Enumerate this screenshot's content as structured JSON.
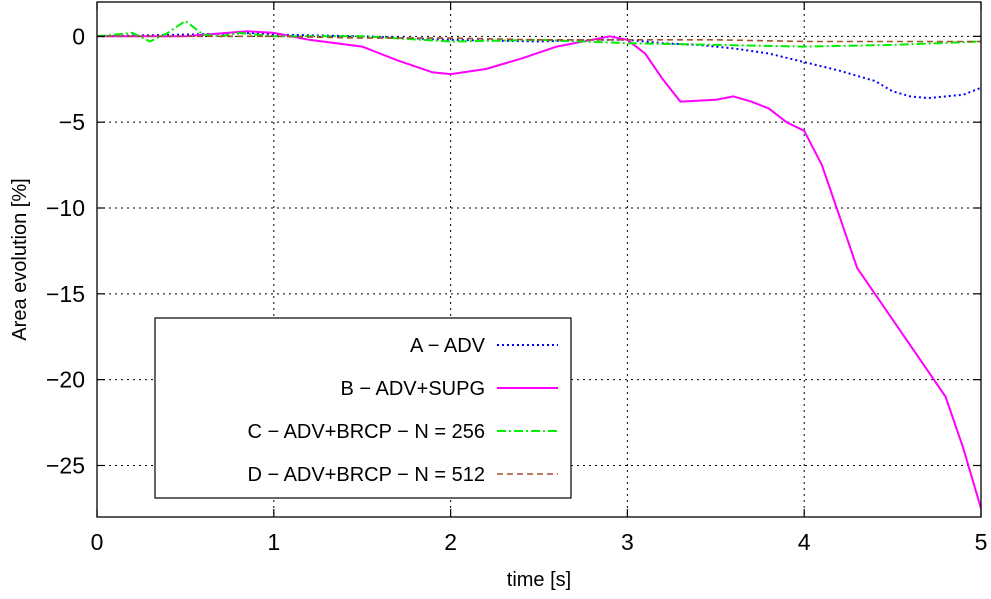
{
  "chart_data": {
    "type": "line",
    "title": "",
    "xlabel": "time [s]",
    "ylabel": "Area evolution [%]",
    "xlim": [
      0,
      5
    ],
    "ylim": [
      -28,
      2
    ],
    "xticks": [
      0,
      1,
      2,
      3,
      4,
      5
    ],
    "xtick_labels": [
      "0",
      "1",
      "2",
      "3",
      "4",
      "5"
    ],
    "yticks": [
      0,
      -5,
      -10,
      -15,
      -20,
      -25
    ],
    "ytick_labels": [
      "0",
      "−5",
      "−10",
      "−15",
      "−20",
      "−25"
    ],
    "grid": true,
    "legend_position": "bottom-left",
    "series": [
      {
        "name": "A − ADV",
        "color": "#0000ff",
        "style": "dotted",
        "x": [
          0,
          0.5,
          0.9,
          1.0,
          1.5,
          2.0,
          2.5,
          2.8,
          3.0,
          3.2,
          3.4,
          3.6,
          3.8,
          4.0,
          4.2,
          4.4,
          4.5,
          4.6,
          4.7,
          4.8,
          4.9,
          5.0
        ],
        "y": [
          0,
          0.1,
          0.2,
          0.1,
          0,
          -0.2,
          -0.3,
          -0.2,
          -0.2,
          -0.4,
          -0.5,
          -0.7,
          -1.0,
          -1.5,
          -2.0,
          -2.6,
          -3.2,
          -3.5,
          -3.6,
          -3.5,
          -3.4,
          -3.0
        ]
      },
      {
        "name": "B − ADV+SUPG",
        "color": "#ff00ff",
        "style": "solid",
        "x": [
          0,
          0.5,
          0.85,
          1.0,
          1.2,
          1.5,
          1.7,
          1.9,
          2.0,
          2.2,
          2.4,
          2.6,
          2.8,
          2.9,
          3.0,
          3.1,
          3.2,
          3.3,
          3.5,
          3.6,
          3.7,
          3.8,
          3.9,
          4.0,
          4.1,
          4.2,
          4.3,
          4.4,
          4.5,
          4.6,
          4.7,
          4.8,
          4.9,
          5.0
        ],
        "y": [
          0,
          0,
          0.3,
          0.2,
          -0.2,
          -0.6,
          -1.4,
          -2.1,
          -2.2,
          -1.9,
          -1.3,
          -0.6,
          -0.2,
          0,
          -0.2,
          -1.0,
          -2.5,
          -3.8,
          -3.7,
          -3.5,
          -3.8,
          -4.2,
          -5.0,
          -5.5,
          -7.5,
          -10.5,
          -13.5,
          -15.0,
          -16.5,
          -18.0,
          -19.5,
          -21.0,
          -24.0,
          -27.5
        ]
      },
      {
        "name": "C − ADV+BRCP − N = 256",
        "color": "#00ee00",
        "style": "dash-dot",
        "x": [
          0,
          0.1,
          0.2,
          0.3,
          0.4,
          0.5,
          0.6,
          0.7,
          0.8,
          1.0,
          1.5,
          2.0,
          2.5,
          3.0,
          3.5,
          4.0,
          4.5,
          5.0
        ],
        "y": [
          0,
          0.1,
          0.2,
          -0.3,
          0.2,
          0.9,
          0.1,
          0,
          0.2,
          0,
          0,
          -0.3,
          -0.2,
          -0.4,
          -0.5,
          -0.6,
          -0.5,
          -0.3
        ]
      },
      {
        "name": "D − ADV+BRCP − N = 512",
        "color": "#a0522d",
        "style": "dashed",
        "x": [
          0,
          0.5,
          1.0,
          1.5,
          2.0,
          2.5,
          3.0,
          3.5,
          4.0,
          4.5,
          5.0
        ],
        "y": [
          0,
          0,
          0,
          -0.1,
          -0.1,
          -0.2,
          -0.2,
          -0.2,
          -0.3,
          -0.3,
          -0.3
        ]
      }
    ]
  }
}
